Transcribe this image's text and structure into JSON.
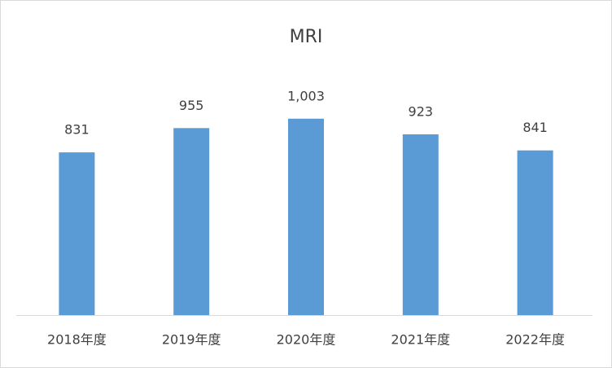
{
  "chart_data": {
    "type": "bar",
    "title": "MRI",
    "categories": [
      "2018年度",
      "2019年度",
      "2020年度",
      "2021年度",
      "2022年度"
    ],
    "values": [
      831,
      955,
      1003,
      923,
      841
    ],
    "value_labels": [
      "831",
      "955",
      "1,003",
      "923",
      "841"
    ],
    "color": "#5b9bd5"
  }
}
